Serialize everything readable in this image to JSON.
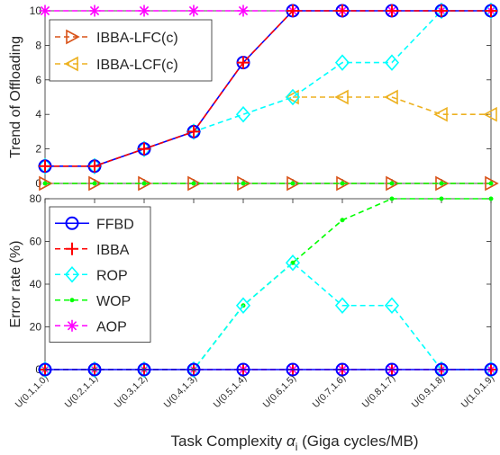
{
  "chart_data": [
    {
      "type": "line",
      "ylabel": "Trend of Offloading",
      "ylim": [
        0,
        10
      ],
      "yticks": [
        0,
        2,
        4,
        6,
        8,
        10
      ],
      "categories": [
        "U(0.1,1.0)",
        "U(0.2,1.1)",
        "U(0.3,1.2)",
        "U(0.4,1.3)",
        "U(0.5,1.4)",
        "U(0.6,1.5)",
        "U(0.7,1.6)",
        "U(0.8,1.7)",
        "U(0.9,1.8)",
        "U(1.0,1.9)"
      ],
      "legend_position": "top-left",
      "series": [
        {
          "name": "IBBA-LFC(c)",
          "color": "#D95319",
          "marker": "triangle-right",
          "dash": "dashed",
          "values": [
            0,
            0,
            0,
            0,
            0,
            0,
            0,
            0,
            0,
            0
          ]
        },
        {
          "name": "IBBA-LCF(c)",
          "color": "#EDB120",
          "marker": "triangle-left",
          "dash": "dashed",
          "values": [
            10,
            10,
            10,
            10,
            10,
            10,
            10,
            10,
            10,
            10
          ]
        }
      ],
      "extra_series": [
        {
          "key": "FFBD",
          "color": "#0000FF",
          "marker": "circle",
          "dash": "solid",
          "values": [
            1,
            1,
            2,
            3,
            7,
            10,
            10,
            10,
            10,
            10
          ]
        },
        {
          "key": "IBBA",
          "color": "#FF0000",
          "marker": "plus",
          "dash": "dashed",
          "values": [
            1,
            1,
            2,
            3,
            7,
            10,
            10,
            10,
            10,
            10
          ]
        },
        {
          "key": "ROP",
          "color": "#00FFFF",
          "marker": "diamond",
          "dash": "dashed",
          "values": [
            1,
            1,
            2,
            3,
            4,
            5,
            7,
            7,
            10,
            10
          ]
        },
        {
          "key": "WOP",
          "color": "#00FF00",
          "marker": "dot",
          "dash": "dashed",
          "values": [
            0,
            0,
            0,
            0,
            0,
            0,
            0,
            0,
            0,
            0
          ]
        },
        {
          "key": "AOP",
          "color": "#FF00FF",
          "marker": "asterisk",
          "dash": "dashed",
          "values": [
            10,
            10,
            10,
            10,
            10,
            10,
            10,
            10,
            10,
            10
          ]
        },
        {
          "key": "LCF",
          "color": "#EDB120",
          "marker": "triangle-left",
          "dash": "dashed",
          "values": [
            null,
            null,
            null,
            null,
            null,
            5,
            5,
            5,
            4,
            4
          ]
        }
      ],
      "draw_order": [
        "LCF",
        "LFC",
        "WOP",
        "AOP",
        "ROP",
        "FFBD",
        "IBBA"
      ]
    },
    {
      "type": "line",
      "ylabel": "Error rate (%)",
      "xlabel": "Task Complexity",
      "xlabel_symbol": "α",
      "xlabel_sub": "i",
      "xlabel_suffix": "(Giga cycles/MB)",
      "ylim": [
        0,
        80
      ],
      "yticks": [
        0,
        20,
        40,
        60,
        80
      ],
      "categories": [
        "U(0.1,1.0)",
        "U(0.2,1.1)",
        "U(0.3,1.2)",
        "U(0.4,1.3)",
        "U(0.5,1.4)",
        "U(0.6,1.5)",
        "U(0.7,1.6)",
        "U(0.8,1.7)",
        "U(0.9,1.8)",
        "U(1.0,1.9)"
      ],
      "legend_position": "top-left",
      "series": [
        {
          "name": "FFBD",
          "color": "#0000FF",
          "marker": "circle",
          "dash": "solid",
          "values": [
            0,
            0,
            0,
            0,
            0,
            0,
            0,
            0,
            0,
            0
          ]
        },
        {
          "name": "IBBA",
          "color": "#FF0000",
          "marker": "plus",
          "dash": "dashed",
          "values": [
            0,
            0,
            0,
            0,
            0,
            0,
            0,
            0,
            0,
            0
          ]
        },
        {
          "name": "ROP",
          "color": "#00FFFF",
          "marker": "diamond",
          "dash": "dashed",
          "values": [
            0,
            0,
            0,
            0,
            30,
            50,
            30,
            30,
            0,
            0
          ]
        },
        {
          "name": "WOP",
          "color": "#00FF00",
          "marker": "dot",
          "dash": "dashed",
          "values": [
            0,
            0,
            0,
            0,
            30,
            50,
            70,
            80,
            80,
            80
          ]
        },
        {
          "name": "AOP",
          "color": "#FF00FF",
          "marker": "asterisk",
          "dash": "dashed",
          "values": [
            0,
            0,
            0,
            0,
            0,
            0,
            0,
            0,
            0,
            0
          ]
        }
      ],
      "draw_order": [
        "AOP",
        "WOP",
        "ROP",
        "IBBA",
        "FFBD"
      ]
    }
  ]
}
